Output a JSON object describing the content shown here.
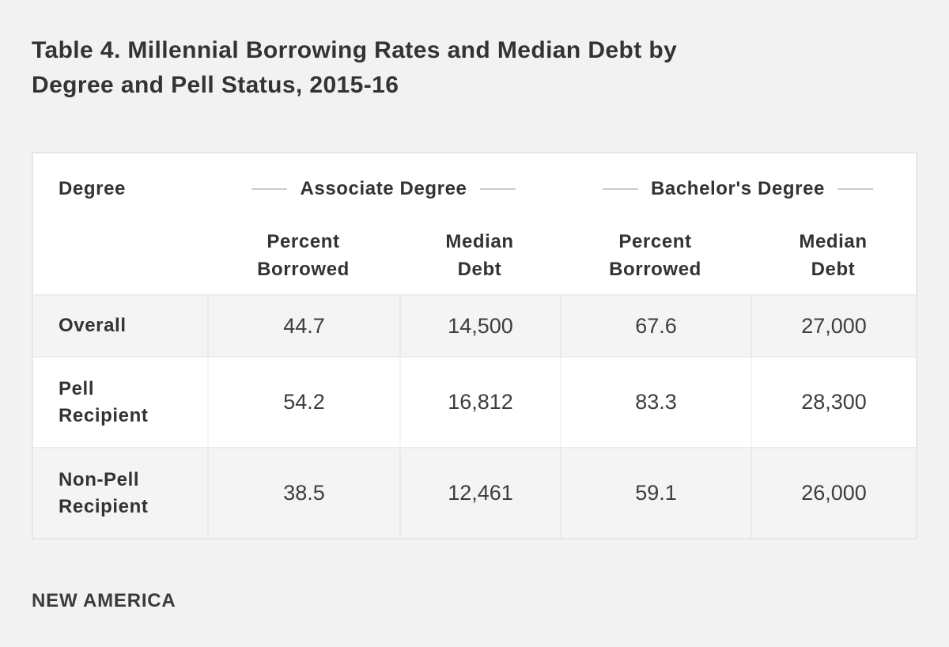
{
  "page": {
    "title_line1": "Table 4. Millennial Borrowing Rates and Median Debt by",
    "title_line2": "Degree and Pell Status, 2015-16",
    "source": "NEW AMERICA"
  },
  "table": {
    "corner_label": "Degree",
    "groups": [
      {
        "label": "Associate Degree"
      },
      {
        "label": "Bachelor's Degree"
      }
    ],
    "subheaders": [
      "Percent Borrowed",
      "Median Debt",
      "Percent Borrowed",
      "Median Debt"
    ],
    "rows": [
      {
        "label": "Overall",
        "values": [
          "44.7",
          "14,500",
          "67.6",
          "27,000"
        ]
      },
      {
        "label": "Pell Recipient",
        "values": [
          "54.2",
          "16,812",
          "83.3",
          "28,300"
        ]
      },
      {
        "label": "Non-Pell Recipient",
        "values": [
          "38.5",
          "12,461",
          "59.1",
          "26,000"
        ]
      }
    ]
  },
  "colors": {
    "page_background": "#f2f2f2",
    "card_background": "#ffffff",
    "striped_row": "#f4f4f4",
    "border": "#e6e6e6",
    "dash": "#cccccc",
    "text": "#333333"
  },
  "chart_data": {
    "type": "table",
    "title": "Table 4. Millennial Borrowing Rates and Median Debt by Degree and Pell Status, 2015-16",
    "column_groups": [
      "Associate Degree",
      "Bachelor's Degree"
    ],
    "columns": [
      "Degree",
      "Associate Degree Percent Borrowed",
      "Associate Degree Median Debt",
      "Bachelor's Degree Percent Borrowed",
      "Bachelor's Degree Median Debt"
    ],
    "rows": [
      {
        "degree": "Overall",
        "associate_percent_borrowed": 44.7,
        "associate_median_debt": 14500,
        "bachelors_percent_borrowed": 67.6,
        "bachelors_median_debt": 27000
      },
      {
        "degree": "Pell Recipient",
        "associate_percent_borrowed": 54.2,
        "associate_median_debt": 16812,
        "bachelors_percent_borrowed": 83.3,
        "bachelors_median_debt": 28300
      },
      {
        "degree": "Non-Pell Recipient",
        "associate_percent_borrowed": 38.5,
        "associate_median_debt": 12461,
        "bachelors_percent_borrowed": 59.1,
        "bachelors_median_debt": 26000
      }
    ],
    "source": "NEW AMERICA"
  }
}
